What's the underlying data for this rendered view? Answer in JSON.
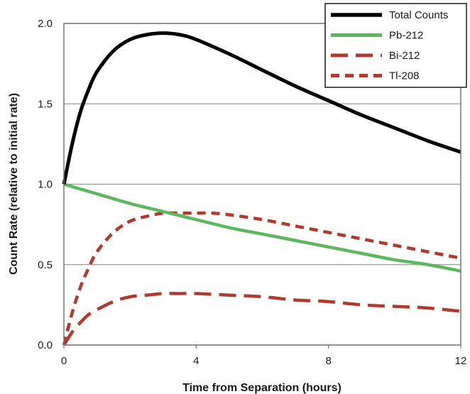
{
  "chart_data": {
    "type": "line",
    "title": "",
    "xlabel": "Time from Separation (hours)",
    "ylabel": "Count Rate (relative to initial rate)",
    "xlim": [
      0,
      12
    ],
    "ylim": [
      0,
      2.0
    ],
    "xticks": [
      0,
      4,
      8,
      12
    ],
    "xtick_labels": [
      "0",
      "4",
      "8",
      "12"
    ],
    "yticks": [
      0,
      0.5,
      1.0,
      1.5,
      2.0
    ],
    "ytick_labels": [
      "0.0",
      "0.5",
      "1.0",
      "1.5",
      "2.0"
    ],
    "grid": "horizontal",
    "legend_position": "top-right",
    "series": [
      {
        "name": "Total Counts",
        "color": "#000000",
        "style": "solid",
        "x": [
          0,
          0.25,
          0.5,
          0.75,
          1,
          1.5,
          2,
          2.5,
          3,
          3.5,
          4,
          5,
          6,
          7,
          8,
          9,
          10,
          11,
          12
        ],
        "y": [
          1.0,
          1.25,
          1.45,
          1.59,
          1.7,
          1.83,
          1.9,
          1.93,
          1.94,
          1.93,
          1.9,
          1.81,
          1.71,
          1.61,
          1.52,
          1.43,
          1.35,
          1.27,
          1.2
        ]
      },
      {
        "name": "Pb-212",
        "color": "#5cb85c",
        "style": "solid",
        "x": [
          0,
          1,
          2,
          3,
          4,
          5,
          6,
          7,
          8,
          9,
          10,
          11,
          12
        ],
        "y": [
          1.0,
          0.94,
          0.88,
          0.83,
          0.78,
          0.73,
          0.69,
          0.65,
          0.61,
          0.57,
          0.53,
          0.5,
          0.46
        ]
      },
      {
        "name": "Bi-212",
        "color": "#b03a2e",
        "style": "long-dash",
        "x": [
          0,
          0.25,
          0.5,
          0.75,
          1,
          1.5,
          2,
          2.5,
          3,
          3.5,
          4,
          5,
          6,
          7,
          8,
          9,
          10,
          11,
          12
        ],
        "y": [
          0.0,
          0.08,
          0.14,
          0.19,
          0.22,
          0.27,
          0.3,
          0.31,
          0.32,
          0.32,
          0.32,
          0.31,
          0.3,
          0.28,
          0.27,
          0.25,
          0.24,
          0.23,
          0.21
        ]
      },
      {
        "name": "Tl-208",
        "color": "#b03a2e",
        "style": "short-dash",
        "x": [
          0,
          0.25,
          0.5,
          0.75,
          1,
          1.5,
          2,
          2.5,
          3,
          3.5,
          4,
          4.5,
          5,
          6,
          7,
          8,
          9,
          10,
          11,
          12
        ],
        "y": [
          0.0,
          0.2,
          0.36,
          0.48,
          0.58,
          0.7,
          0.77,
          0.8,
          0.82,
          0.82,
          0.82,
          0.82,
          0.81,
          0.78,
          0.74,
          0.7,
          0.66,
          0.62,
          0.58,
          0.54
        ]
      }
    ]
  }
}
